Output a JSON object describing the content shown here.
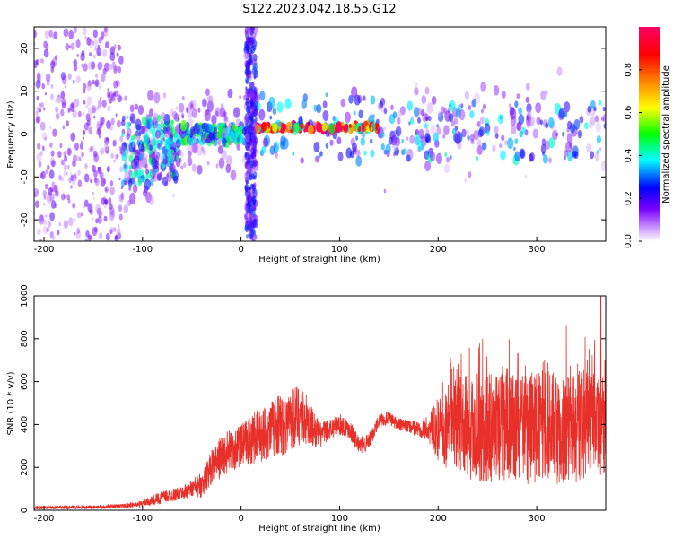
{
  "figure": {
    "title": "S122.2023.042.18.55.G12"
  },
  "chart_data": [
    {
      "type": "heatmap",
      "xlabel": "Height of straight line (km)",
      "ylabel": "Frequency (Hz)",
      "xlim": [
        -210,
        370
      ],
      "ylim": [
        -25,
        25
      ],
      "xticks": [
        "-200",
        "-100",
        "0",
        "100",
        "200",
        "300"
      ],
      "yticks": [
        "-20",
        "-10",
        "0",
        "10",
        "20"
      ],
      "colorbar": {
        "label": "Normalized spectral amplitude",
        "range": [
          0,
          1
        ],
        "ticks": [
          "0.0",
          "0.2",
          "0.4",
          "0.6",
          "0.8"
        ],
        "colormap": "rainbow (white-purple-blue-cyan-green-yellow-orange-red-pink)"
      },
      "features": [
        {
          "x_range": [
            -210,
            -120
          ],
          "freq_range": [
            -25,
            25
          ],
          "amplitude": 0.15
        },
        {
          "x_range": [
            -120,
            -60
          ],
          "freq_range": [
            -12,
            4
          ],
          "amplitude": 0.4
        },
        {
          "x_range": [
            -60,
            15
          ],
          "freq_range": [
            -2,
            2
          ],
          "amplitude": 0.45
        },
        {
          "x_range": [
            15,
            140
          ],
          "freq_range": [
            1,
            2
          ],
          "amplitude": 0.95
        },
        {
          "x_range": [
            140,
            370
          ],
          "freq_range": [
            -6,
            8
          ],
          "amplitude": 0.35
        },
        {
          "x_range": [
            5,
            15
          ],
          "freq_range": [
            -25,
            25
          ],
          "amplitude": 0.25
        }
      ]
    },
    {
      "type": "line",
      "xlabel": "Height of straight line (km)",
      "ylabel": "SNR (10 * v/v)",
      "xlim": [
        -210,
        370
      ],
      "ylim": [
        0,
        1000
      ],
      "xticks": [
        "-200",
        "-100",
        "0",
        "100",
        "200",
        "300"
      ],
      "yticks": [
        "0",
        "200",
        "400",
        "600",
        "800",
        "1000"
      ],
      "line_color": "#e8302a",
      "envelope": {
        "x": [
          -210,
          -150,
          -120,
          -100,
          -80,
          -60,
          -40,
          -30,
          -20,
          -10,
          0,
          10,
          20,
          30,
          40,
          50,
          60,
          70,
          80,
          90,
          100,
          110,
          120,
          130,
          140,
          150,
          160,
          170,
          180,
          190,
          200,
          210,
          220,
          230,
          240,
          250,
          260,
          270,
          280,
          290,
          300,
          310,
          320,
          330,
          340,
          350,
          360,
          370
        ],
        "y": [
          12,
          14,
          20,
          30,
          60,
          80,
          120,
          200,
          250,
          280,
          300,
          330,
          350,
          380,
          400,
          420,
          450,
          400,
          350,
          380,
          400,
          380,
          300,
          320,
          420,
          430,
          400,
          390,
          380,
          380,
          380,
          390,
          400,
          390,
          380,
          380,
          390,
          400,
          380,
          380,
          390,
          400,
          380,
          380,
          390,
          400,
          420,
          400
        ],
        "spread": [
          8,
          8,
          10,
          15,
          30,
          30,
          60,
          80,
          100,
          100,
          100,
          120,
          130,
          130,
          150,
          150,
          150,
          100,
          60,
          50,
          50,
          50,
          40,
          40,
          30,
          30,
          30,
          30,
          40,
          60,
          150,
          200,
          220,
          250,
          250,
          250,
          260,
          260,
          250,
          260,
          260,
          260,
          260,
          260,
          260,
          260,
          250,
          250
        ],
        "peaks": [
          {
            "x": 365,
            "y": 1000
          },
          {
            "x": 283,
            "y": 900
          },
          {
            "x": 330,
            "y": 860
          },
          {
            "x": 245,
            "y": 800
          }
        ]
      }
    }
  ]
}
